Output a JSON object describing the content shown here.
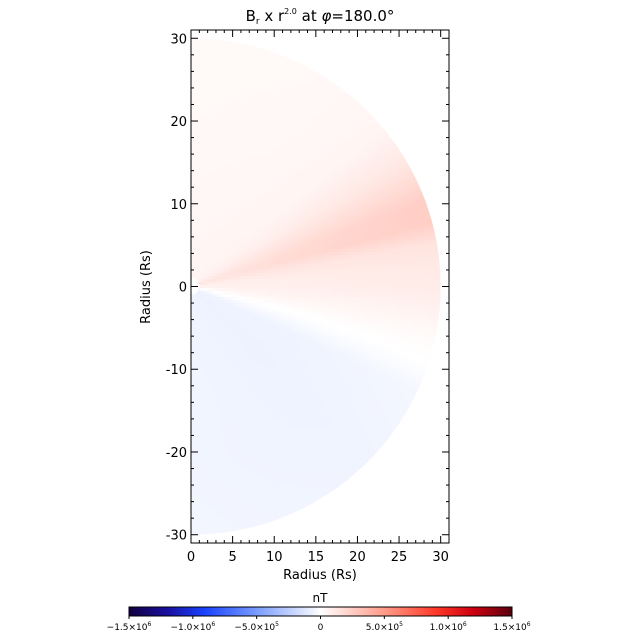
{
  "chart_data": {
    "type": "heatmap",
    "title": {
      "var_main": "B",
      "var_sub": "r",
      "times": " x r",
      "exponent": "2.0",
      "suffix_pre": " at ",
      "phi_symbol": "φ",
      "suffix_post": "=180.0°"
    },
    "xlabel": "Radius (Rs)",
    "ylabel": "Radius (Rs)",
    "xlim": [
      0,
      31
    ],
    "ylim": [
      -31,
      31
    ],
    "x_ticks": [
      {
        "value": 0,
        "label": "0"
      },
      {
        "value": 5,
        "label": "5"
      },
      {
        "value": 10,
        "label": "10"
      },
      {
        "value": 15,
        "label": "15"
      },
      {
        "value": 20,
        "label": "20"
      },
      {
        "value": 25,
        "label": "25"
      },
      {
        "value": 30,
        "label": "30"
      }
    ],
    "y_ticks": [
      {
        "value": 30,
        "label": "30"
      },
      {
        "value": 20,
        "label": "20"
      },
      {
        "value": 10,
        "label": "10"
      },
      {
        "value": 0,
        "label": "0"
      },
      {
        "value": -10,
        "label": "-10"
      },
      {
        "value": -20,
        "label": "-20"
      },
      {
        "value": -30,
        "label": "-30"
      }
    ],
    "domain": {
      "shape": "half-disk",
      "r_min": 1,
      "r_max": 30
    },
    "colorbar": {
      "label": "nT",
      "range": [
        -1500000,
        1500000
      ],
      "stops": [
        {
          "value": -1500000,
          "color": "#120040"
        },
        {
          "value": -1200000,
          "color": "#1a0f9e"
        },
        {
          "value": -900000,
          "color": "#1a44ff"
        },
        {
          "value": -500000,
          "color": "#7a9cff"
        },
        {
          "value": 0,
          "color": "#ffffff"
        },
        {
          "value": 500000,
          "color": "#ff9c8a"
        },
        {
          "value": 900000,
          "color": "#ff3a28"
        },
        {
          "value": 1200000,
          "color": "#cc0010"
        },
        {
          "value": 1500000,
          "color": "#5a0010"
        }
      ],
      "ticks": [
        {
          "value": -1500000,
          "mantissa": "−1.5×10",
          "exp": "6"
        },
        {
          "value": -1000000,
          "mantissa": "−1.0×10",
          "exp": "6"
        },
        {
          "value": -500000,
          "mantissa": "−5.0×10",
          "exp": "5"
        },
        {
          "value": 0,
          "mantissa": "0",
          "exp": ""
        },
        {
          "value": 500000,
          "mantissa": "5.0×10",
          "exp": "5"
        },
        {
          "value": 1000000,
          "mantissa": "1.0×10",
          "exp": "6"
        },
        {
          "value": 1500000,
          "mantissa": "1.5×10",
          "exp": "6"
        }
      ]
    },
    "field_samples": [
      {
        "lat": 90,
        "values": [
          45000,
          38000,
          32000,
          28000
        ]
      },
      {
        "lat": 60,
        "values": [
          50000,
          42000,
          36000,
          32000
        ]
      },
      {
        "lat": 40,
        "values": [
          60000,
          52000,
          48000,
          46000
        ]
      },
      {
        "lat": 30,
        "values": [
          80000,
          90000,
          110000,
          120000
        ]
      },
      {
        "lat": 20,
        "values": [
          120000,
          170000,
          210000,
          250000
        ]
      },
      {
        "lat": 15,
        "values": [
          130000,
          180000,
          220000,
          250000
        ]
      },
      {
        "lat": 10,
        "values": [
          100000,
          120000,
          130000,
          140000
        ]
      },
      {
        "lat": 5,
        "values": [
          80000,
          90000,
          100000,
          110000
        ]
      },
      {
        "lat": 0,
        "values": [
          70000,
          80000,
          90000,
          100000
        ]
      },
      {
        "lat": -5,
        "values": [
          50000,
          60000,
          60000,
          70000
        ]
      },
      {
        "lat": -12,
        "values": [
          10000,
          10000,
          20000,
          20000
        ]
      },
      {
        "lat": -18,
        "values": [
          -30000,
          -20000,
          -10000,
          0
        ]
      },
      {
        "lat": -25,
        "values": [
          -60000,
          -60000,
          -50000,
          -40000
        ]
      },
      {
        "lat": -45,
        "values": [
          -65000,
          -65000,
          -60000,
          -55000
        ]
      },
      {
        "lat": -70,
        "values": [
          -60000,
          -55000,
          -55000,
          -50000
        ]
      },
      {
        "lat": -90,
        "values": [
          -55000,
          -50000,
          -50000,
          -45000
        ]
      }
    ],
    "field_sample_radii": [
      3,
      12,
      21,
      30
    ]
  }
}
